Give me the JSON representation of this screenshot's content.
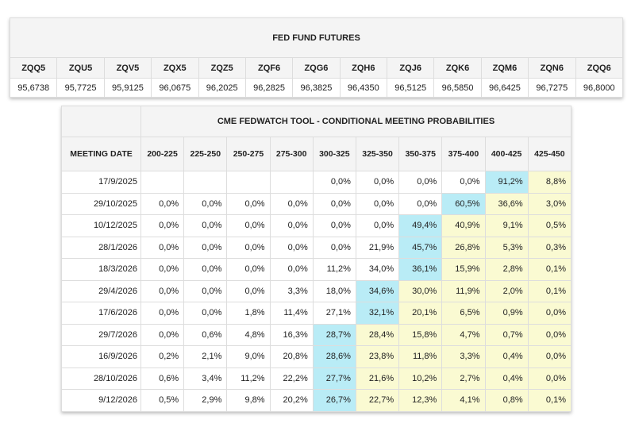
{
  "futures": {
    "title": "FED FUND FUTURES",
    "contracts": [
      "ZQQ5",
      "ZQU5",
      "ZQV5",
      "ZQX5",
      "ZQZ5",
      "ZQF6",
      "ZQG6",
      "ZQH6",
      "ZQJ6",
      "ZQK6",
      "ZQM6",
      "ZQN6",
      "ZQQ6"
    ],
    "prices": [
      "95,6738",
      "95,7725",
      "95,9125",
      "96,0675",
      "96,2025",
      "96,2825",
      "96,3825",
      "96,4350",
      "96,5125",
      "96,5850",
      "96,6425",
      "96,7275",
      "96,8000"
    ]
  },
  "fedwatch": {
    "title": "CME FEDWATCH TOOL - CONDITIONAL MEETING PROBABILITIES",
    "date_header": "MEETING DATE",
    "ranges": [
      "200-225",
      "225-250",
      "250-275",
      "275-300",
      "300-325",
      "325-350",
      "350-375",
      "375-400",
      "400-425",
      "425-450"
    ],
    "colors": {
      "most_likely": "#b9ecf6",
      "above_most_likely": "#fafad2"
    },
    "rows": [
      {
        "date": "17/9/2025",
        "values": [
          "",
          "",
          "",
          "",
          "0,0%",
          "0,0%",
          "0,0%",
          "0,0%",
          "91,2%",
          "8,8%"
        ],
        "most_likely_index": 8
      },
      {
        "date": "29/10/2025",
        "values": [
          "0,0%",
          "0,0%",
          "0,0%",
          "0,0%",
          "0,0%",
          "0,0%",
          "0,0%",
          "60,5%",
          "36,6%",
          "3,0%"
        ],
        "most_likely_index": 7
      },
      {
        "date": "10/12/2025",
        "values": [
          "0,0%",
          "0,0%",
          "0,0%",
          "0,0%",
          "0,0%",
          "0,0%",
          "49,4%",
          "40,9%",
          "9,1%",
          "0,5%"
        ],
        "most_likely_index": 6
      },
      {
        "date": "28/1/2026",
        "values": [
          "0,0%",
          "0,0%",
          "0,0%",
          "0,0%",
          "0,0%",
          "21,9%",
          "45,7%",
          "26,8%",
          "5,3%",
          "0,3%"
        ],
        "most_likely_index": 6
      },
      {
        "date": "18/3/2026",
        "values": [
          "0,0%",
          "0,0%",
          "0,0%",
          "0,0%",
          "11,2%",
          "34,0%",
          "36,1%",
          "15,9%",
          "2,8%",
          "0,1%"
        ],
        "most_likely_index": 6
      },
      {
        "date": "29/4/2026",
        "values": [
          "0,0%",
          "0,0%",
          "0,0%",
          "3,3%",
          "18,0%",
          "34,6%",
          "30,0%",
          "11,9%",
          "2,0%",
          "0,1%"
        ],
        "most_likely_index": 5
      },
      {
        "date": "17/6/2026",
        "values": [
          "0,0%",
          "0,0%",
          "1,8%",
          "11,4%",
          "27,1%",
          "32,1%",
          "20,1%",
          "6,5%",
          "0,9%",
          "0,0%"
        ],
        "most_likely_index": 5
      },
      {
        "date": "29/7/2026",
        "values": [
          "0,0%",
          "0,6%",
          "4,8%",
          "16,3%",
          "28,7%",
          "28,4%",
          "15,8%",
          "4,7%",
          "0,7%",
          "0,0%"
        ],
        "most_likely_index": 4
      },
      {
        "date": "16/9/2026",
        "values": [
          "0,2%",
          "2,1%",
          "9,0%",
          "20,8%",
          "28,6%",
          "23,8%",
          "11,8%",
          "3,3%",
          "0,4%",
          "0,0%"
        ],
        "most_likely_index": 4
      },
      {
        "date": "28/10/2026",
        "values": [
          "0,6%",
          "3,4%",
          "11,2%",
          "22,2%",
          "27,7%",
          "21,6%",
          "10,2%",
          "2,7%",
          "0,4%",
          "0,0%"
        ],
        "most_likely_index": 4
      },
      {
        "date": "9/12/2026",
        "values": [
          "0,5%",
          "2,9%",
          "9,8%",
          "20,2%",
          "26,7%",
          "22,7%",
          "12,3%",
          "4,1%",
          "0,8%",
          "0,1%"
        ],
        "most_likely_index": 4
      }
    ]
  }
}
